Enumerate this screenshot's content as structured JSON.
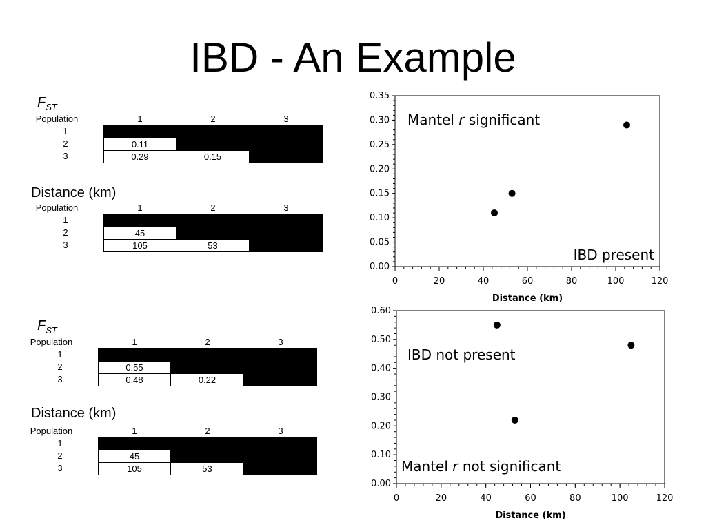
{
  "slide": {
    "title": "IBD - An Example"
  },
  "panels": [
    {
      "fst": {
        "label": "F",
        "sub": "ST",
        "header": [
          "Population",
          "1",
          "2",
          "3"
        ],
        "rows": [
          "1",
          "2",
          "3"
        ],
        "values": [
          [
            "0.11"
          ],
          [
            "0.29",
            "0.15"
          ]
        ]
      },
      "distance": {
        "label": "Distance (km)",
        "header": [
          "Population",
          "1",
          "2",
          "3"
        ],
        "rows": [
          "1",
          "2",
          "3"
        ],
        "values": [
          [
            "45"
          ],
          [
            "105",
            "53"
          ]
        ]
      }
    },
    {
      "fst": {
        "label": "F",
        "sub": "ST",
        "header": [
          "Population",
          "1",
          "2",
          "3"
        ],
        "rows": [
          "1",
          "2",
          "3"
        ],
        "values": [
          [
            "0.55"
          ],
          [
            "0.48",
            "0.22"
          ]
        ]
      },
      "distance": {
        "label": "Distance (km)",
        "header": [
          "Population",
          "1",
          "2",
          "3"
        ],
        "rows": [
          "1",
          "2",
          "3"
        ],
        "values": [
          [
            "45"
          ],
          [
            "105",
            "53"
          ]
        ]
      }
    }
  ],
  "chart_data": [
    {
      "type": "scatter",
      "title": "",
      "xlabel": "Distance (km)",
      "ylabel": "",
      "xlim": [
        0,
        120
      ],
      "ylim": [
        0,
        0.35
      ],
      "xticks": [
        "0",
        "20",
        "40",
        "60",
        "80",
        "100",
        "120"
      ],
      "yticks": [
        "0.00",
        "0.05",
        "0.10",
        "0.15",
        "0.20",
        "0.25",
        "0.30",
        "0.35"
      ],
      "points": [
        {
          "x": 45,
          "y": 0.11
        },
        {
          "x": 53,
          "y": 0.15
        },
        {
          "x": 105,
          "y": 0.29
        }
      ],
      "grid": false,
      "annotations": [
        {
          "text_pre": "Mantel ",
          "text_em": "r",
          "text_post": " significant"
        },
        {
          "text_pre": "IBD present",
          "text_em": "",
          "text_post": ""
        }
      ]
    },
    {
      "type": "scatter",
      "title": "",
      "xlabel": "Distance (km)",
      "ylabel": "",
      "xlim": [
        0,
        120
      ],
      "ylim": [
        0,
        0.6
      ],
      "xticks": [
        "0",
        "20",
        "40",
        "60",
        "80",
        "100",
        "120"
      ],
      "yticks": [
        "0.00",
        "0.10",
        "0.20",
        "0.30",
        "0.40",
        "0.50",
        "0.60"
      ],
      "points": [
        {
          "x": 45,
          "y": 0.55
        },
        {
          "x": 53,
          "y": 0.22
        },
        {
          "x": 105,
          "y": 0.48
        }
      ],
      "grid": false,
      "annotations": [
        {
          "text_pre": "IBD not present",
          "text_em": "",
          "text_post": ""
        },
        {
          "text_pre": "Mantel ",
          "text_em": "r",
          "text_post": " not significant"
        }
      ]
    }
  ]
}
